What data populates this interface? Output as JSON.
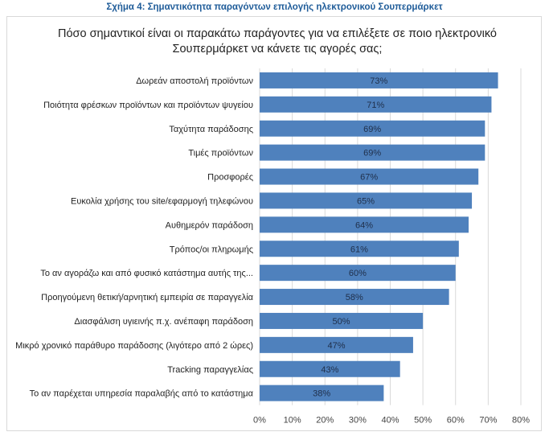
{
  "figure_caption": "Σχήμα 4: Σημαντικότητα παραγόντων επιλογής ηλεκτρονικού Σουπερμάρκετ",
  "chart_data": {
    "type": "bar",
    "orientation": "horizontal",
    "title": "Πόσο σημαντικοί είναι οι παρακάτω παράγοντες για να επιλέξετε σε ποιο ηλεκτρονικό Σουπερμάρκετ να κάνετε τις αγορές σας;",
    "categories": [
      "Δωρεάν αποστολή προϊόντων",
      "Ποιότητα φρέσκων προϊόντων και προϊόντων ψυγείου",
      "Ταχύτητα παράδοσης",
      "Τιμές προϊόντων",
      "Προσφορές",
      "Ευκολία χρήσης του site/εφαρμογή τηλεφώνου",
      "Αυθημερόν παράδοση",
      "Τρόπος/οι πληρωμής",
      "Το αν αγοράζω και από φυσικό κατάστημα αυτής της...",
      "Προηγούμενη θετική/αρνητική εμπειρία σε παραγγελία",
      "Διασφάλιση υγιεινής π.χ. ανέπαφη παράδοση",
      "Μικρό χρονικό παράθυρο παράδοσης (λιγότερο από 2 ώρες)",
      "Tracking παραγγελίας",
      "Το αν παρέχεται υπηρεσία παραλαβής από το κατάστημα"
    ],
    "values": [
      73,
      71,
      69,
      69,
      67,
      65,
      64,
      61,
      60,
      58,
      50,
      47,
      43,
      38
    ],
    "data_labels": [
      "73%",
      "71%",
      "69%",
      "69%",
      "67%",
      "65%",
      "64%",
      "61%",
      "60%",
      "58%",
      "50%",
      "47%",
      "43%",
      "38%"
    ],
    "xlim": [
      0,
      80
    ],
    "xticks": [
      "0%",
      "10%",
      "20%",
      "30%",
      "40%",
      "50%",
      "60%",
      "70%",
      "80%"
    ],
    "grid": true,
    "bar_color": "#4f81bd"
  }
}
